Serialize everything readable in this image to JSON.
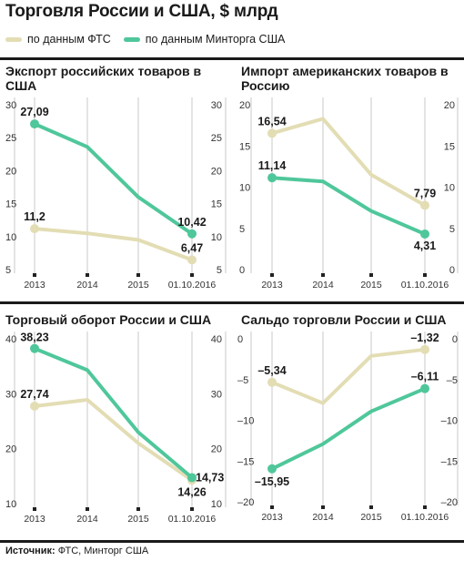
{
  "page": {
    "title": "Торговля России и США, $ млрд",
    "source_label": "Источник:",
    "source_text": "ФТС, Минторг США"
  },
  "colors": {
    "fts": "#e3ddb4",
    "commerce": "#4fc79b",
    "grid": "#c8c8c8",
    "axis": "#555555"
  },
  "legend": [
    {
      "label": "по данным ФТС",
      "series": "fts"
    },
    {
      "label": "по данным Минторга США",
      "series": "commerce"
    }
  ],
  "chart_data": [
    {
      "type": "line",
      "title": "Экспорт российских товаров в США",
      "categories": [
        "2013",
        "2014",
        "2015",
        "01.10.2016"
      ],
      "ylim": [
        5,
        30
      ],
      "yticks": [
        5,
        10,
        15,
        20,
        25,
        30
      ],
      "right_axis": true,
      "series": [
        {
          "name": "по данным ФТС",
          "key": "fts",
          "values": [
            11.2,
            10.5,
            9.5,
            6.47
          ],
          "labels": {
            "0": "11,2",
            "3": "6,47"
          }
        },
        {
          "name": "по данным Минторга США",
          "key": "commerce",
          "values": [
            27.09,
            23.6,
            16.0,
            10.42
          ],
          "labels": {
            "0": "27,09",
            "3": "10,42"
          }
        }
      ]
    },
    {
      "type": "line",
      "title": "Импорт американских товаров в Россию",
      "categories": [
        "2013",
        "2014",
        "2015",
        "01.10.2016"
      ],
      "ylim": [
        0,
        20
      ],
      "yticks": [
        0,
        5,
        10,
        15,
        20
      ],
      "right_axis": true,
      "series": [
        {
          "name": "по данным ФТС",
          "key": "fts",
          "values": [
            16.54,
            18.3,
            11.5,
            7.79
          ],
          "labels": {
            "0": "16,54",
            "3": "7,79"
          }
        },
        {
          "name": "по данным Минторга США",
          "key": "commerce",
          "values": [
            11.14,
            10.7,
            7.1,
            4.31
          ],
          "labels": {
            "0": "11,14",
            "3": "4,31"
          }
        }
      ]
    },
    {
      "type": "line",
      "title": "Торговый оборот России и США",
      "categories": [
        "2013",
        "2014",
        "2015",
        "01.10.2016"
      ],
      "ylim": [
        10,
        40
      ],
      "yticks": [
        10,
        20,
        30,
        40
      ],
      "right_axis": true,
      "series": [
        {
          "name": "по данным ФТС",
          "key": "fts",
          "values": [
            27.74,
            28.9,
            21.0,
            14.26
          ],
          "labels": {
            "0": "27,74",
            "3": "14,26"
          }
        },
        {
          "name": "по данным Минторга США",
          "key": "commerce",
          "values": [
            38.23,
            34.3,
            23.0,
            14.73
          ],
          "labels": {
            "0": "38,23",
            "3": "14,73"
          }
        }
      ]
    },
    {
      "type": "line",
      "title": "Сальдо торговли России и США",
      "categories": [
        "2013",
        "2014",
        "2015",
        "01.10.2016"
      ],
      "ylim": [
        -20,
        0
      ],
      "yticks": [
        -20,
        -15,
        -10,
        -5,
        0
      ],
      "ytick_labels": [
        "–20",
        "–15",
        "–10",
        "–5",
        "0"
      ],
      "right_axis": true,
      "series": [
        {
          "name": "по данным ФТС",
          "key": "fts",
          "values": [
            -5.34,
            -7.9,
            -2.1,
            -1.32
          ],
          "labels": {
            "0": "–5,34",
            "3": "–1,32"
          }
        },
        {
          "name": "по данным Минторга США",
          "key": "commerce",
          "values": [
            -15.95,
            -12.9,
            -8.9,
            -6.11
          ],
          "labels": {
            "0": "–15,95",
            "3": "–6,11"
          }
        }
      ]
    }
  ]
}
